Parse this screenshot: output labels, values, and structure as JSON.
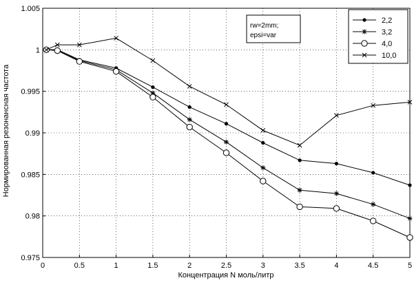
{
  "chart_data": {
    "type": "line",
    "title": "",
    "xlabel": "Концентрация N моль/литр",
    "ylabel": "Нормированная резонансная частота",
    "xlim": [
      0,
      5
    ],
    "ylim": [
      0.975,
      1.005
    ],
    "xticks": [
      0,
      0.5,
      1,
      1.5,
      2,
      2.5,
      3,
      3.5,
      4,
      4.5,
      5
    ],
    "xtick_labels": [
      "0",
      "0.5",
      "1",
      "1.5",
      "2",
      "2.5",
      "3",
      "3.5",
      "4",
      "4.5",
      "5"
    ],
    "yticks": [
      0.975,
      0.98,
      0.985,
      0.99,
      0.995,
      1,
      1.005
    ],
    "ytick_labels": [
      "0.975",
      "0.98",
      "0.985",
      "0.99",
      "0.995",
      "1",
      "1.005"
    ],
    "grid": true,
    "legend_position": "top-right",
    "annotation": [
      "rw=2mm;",
      "epsi=var"
    ],
    "series": [
      {
        "name": "2,2",
        "marker": "dot",
        "x": [
          0.05,
          0.2,
          0.5,
          1,
          1.5,
          2,
          2.5,
          3,
          3.5,
          4,
          4.5,
          5
        ],
        "y": [
          1.0,
          1.0,
          0.9988,
          0.9978,
          0.9955,
          0.9931,
          0.9911,
          0.9888,
          0.9867,
          0.9863,
          0.9852,
          0.9837
        ]
      },
      {
        "name": "3,2",
        "marker": "star",
        "x": [
          0.05,
          0.2,
          0.5,
          1,
          1.5,
          2,
          2.5,
          3,
          3.5,
          4,
          4.5,
          5
        ],
        "y": [
          1.0,
          1.0,
          0.9987,
          0.9976,
          0.9948,
          0.9916,
          0.9889,
          0.9858,
          0.9831,
          0.9827,
          0.9814,
          0.9797
        ]
      },
      {
        "name": "4,0",
        "marker": "circle",
        "x": [
          0.05,
          0.2,
          0.5,
          1,
          1.5,
          2,
          2.5,
          3,
          3.5,
          4,
          4.5,
          5
        ],
        "y": [
          1.0,
          0.9999,
          0.9986,
          0.9974,
          0.9943,
          0.9907,
          0.9876,
          0.9842,
          0.9811,
          0.9809,
          0.9794,
          0.9774
        ]
      },
      {
        "name": "10,0",
        "marker": "x",
        "x": [
          0.05,
          0.2,
          0.5,
          1,
          1.5,
          2,
          2.5,
          3,
          3.5,
          4,
          4.5,
          5
        ],
        "y": [
          1.0,
          1.0006,
          1.0006,
          1.0014,
          0.9987,
          0.9956,
          0.9934,
          0.9903,
          0.9885,
          0.9921,
          0.9933,
          0.9937
        ]
      }
    ]
  }
}
